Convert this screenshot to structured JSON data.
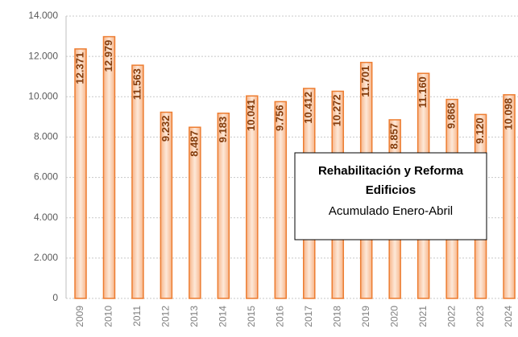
{
  "chart_data": {
    "type": "bar",
    "title": "Rehabilitación y Reforma Edificios",
    "subtitle": "Acumulado Enero-Abril",
    "categories": [
      "2009",
      "2010",
      "2011",
      "2012",
      "2013",
      "2014",
      "2015",
      "2016",
      "2017",
      "2018",
      "2019",
      "2020",
      "2021",
      "2022",
      "2023",
      "2024"
    ],
    "values": [
      12371,
      12979,
      11563,
      9232,
      8487,
      9183,
      10041,
      9756,
      10412,
      10272,
      11701,
      8857,
      11160,
      9868,
      9120,
      10098
    ],
    "value_labels": [
      "12.371",
      "12.979",
      "11.563",
      "9.232",
      "8.487",
      "9.183",
      "10.041",
      "9.756",
      "10.412",
      "10.272",
      "11.701",
      "8.857",
      "11.160",
      "9.868",
      "9.120",
      "10.098"
    ],
    "color": "#ed7d31",
    "ylim": [
      0,
      14000
    ],
    "yticks": [
      0,
      {
        "value": 2000,
        "label": "2.000"
      },
      {
        "value": 4000,
        "label": "4.000"
      },
      {
        "value": 6000,
        "label": "6.000"
      },
      {
        "value": 8000,
        "label": "8.000"
      },
      {
        "value": 10000,
        "label": "10.000"
      },
      {
        "value": 12000,
        "label": "12.000"
      },
      {
        "value": 14000,
        "label": "14.000"
      }
    ],
    "grid": true
  }
}
